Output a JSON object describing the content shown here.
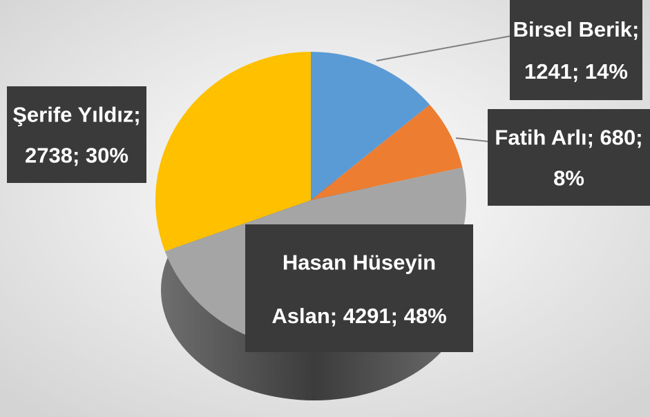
{
  "chart_data": {
    "type": "pie",
    "values": [
      1241,
      680,
      4291,
      2738
    ],
    "value_labels": [
      [
        "Birsel Berik;",
        "1241; 14%"
      ],
      [
        "Fatih Arlı; 680;",
        "8%"
      ],
      [
        "Hasan Hüseyin",
        "Aslan; 4291; 48%"
      ],
      [
        "Şerife Yıldız;",
        "2738; 30%"
      ]
    ],
    "colors": [
      "#5b9bd5",
      "#ed7d31",
      "#a5a5a5",
      "#ffc000"
    ]
  }
}
